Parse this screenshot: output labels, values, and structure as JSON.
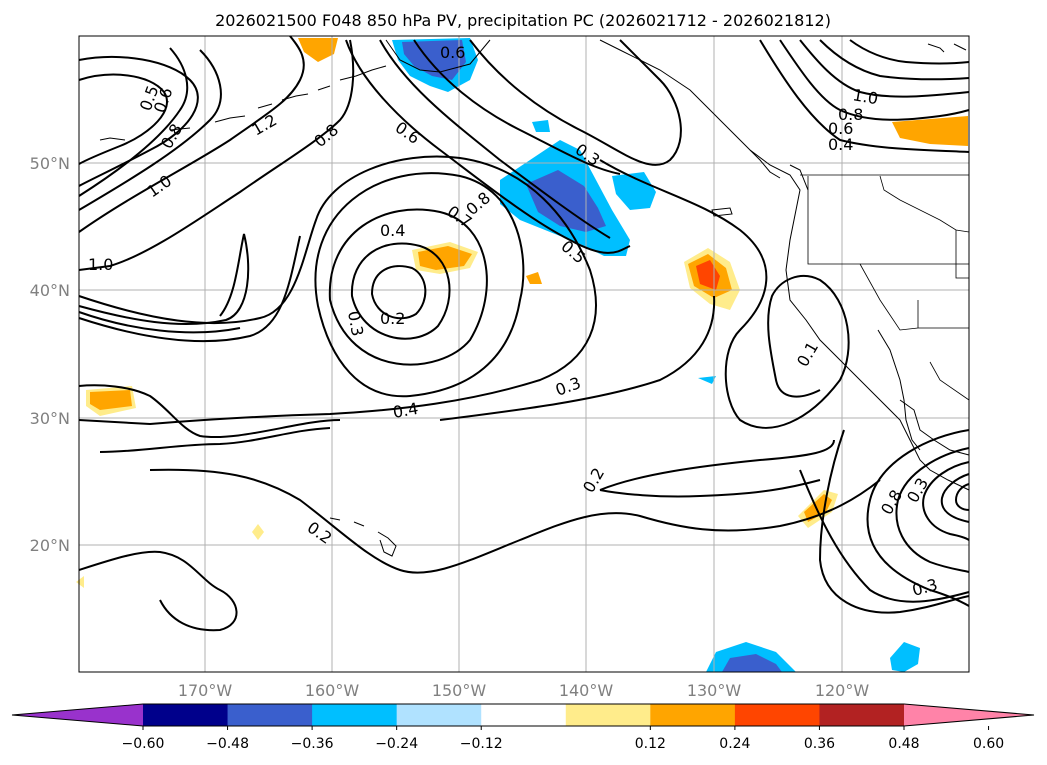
{
  "title": "2026021500 F048 850 hPa PV, precipitation PC (2026021712 - 2026021812)",
  "lat_labels": [
    "50°N",
    "40°N",
    "30°N",
    "20°N"
  ],
  "lon_labels": [
    "170°W",
    "160°W",
    "150°W",
    "140°W",
    "130°W",
    "120°W"
  ],
  "contour_labels": [
    "0.6",
    "0.8",
    "1.2",
    "0.5",
    "0.6",
    "0.8",
    "1.0",
    "1.0",
    "0.6",
    "0.3",
    "0.7",
    "0.8",
    "0.5",
    "0.4",
    "0.3",
    "0.2",
    "0.4",
    "0.3",
    "0.2",
    "0.2",
    "1.0",
    "0.8",
    "0.6",
    "0.4",
    "0.1",
    "0.3",
    "0.8",
    "0.3"
  ],
  "colorbar": {
    "ticks": [
      "−0.60",
      "−0.48",
      "−0.36",
      "−0.24",
      "−0.12",
      "0.12",
      "0.24",
      "0.36",
      "0.48",
      "0.60"
    ],
    "colors": [
      "#9932cc",
      "#00008b",
      "#3a5fcd",
      "#00bfff",
      "#b0e2ff",
      "#ffffff",
      "#ffec8b",
      "#ffa500",
      "#ff4500",
      "#b22222",
      "#ff83a8"
    ]
  },
  "colors": {
    "contour": "#000000",
    "grid": "#b0b0b0",
    "tick_label": "#808080"
  }
}
